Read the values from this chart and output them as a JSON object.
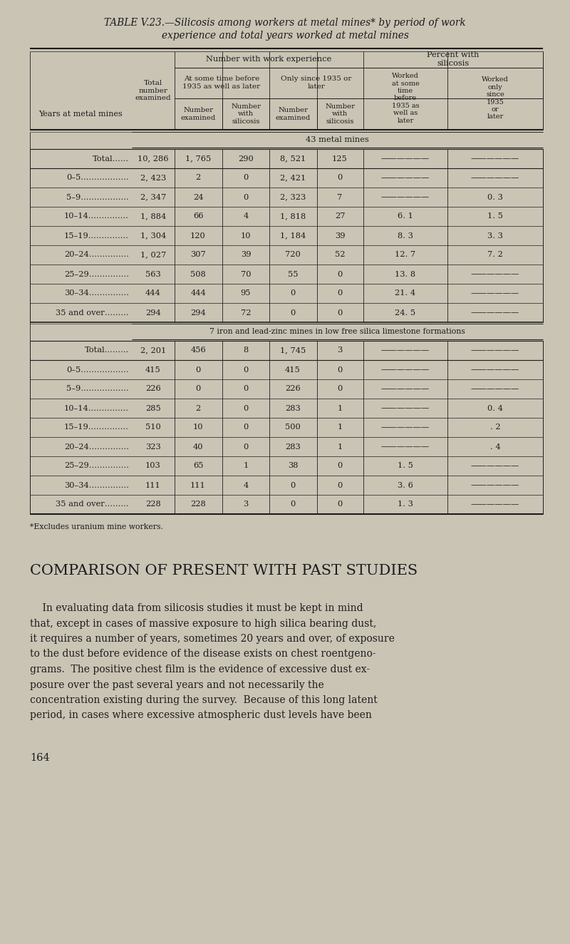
{
  "bg_color": "#cac4b5",
  "title_line1": "TABLE V.23.—Silicosis among workers at metal mines* by period of work",
  "title_line2": "experience and total years worked at metal mines",
  "section1_label": "43 metal mines",
  "section2_label": "7 iron and lead-zinc mines in low free silica limestone formations",
  "section1_total": [
    "Total……",
    "10, 286",
    "1, 765",
    "290",
    "8, 521",
    "125",
    "——————",
    "——————"
  ],
  "section1_rows": [
    [
      "0–5………………",
      "2, 423",
      "2",
      "0",
      "2, 421",
      "0",
      "——————",
      "——————"
    ],
    [
      "5–9………………",
      "2, 347",
      "24",
      "0",
      "2, 323",
      "7",
      "——————",
      "0. 3"
    ],
    [
      "10–14……………",
      "1, 884",
      "66",
      "4",
      "1, 818",
      "27",
      "6. 1",
      "1. 5"
    ],
    [
      "15–19……………",
      "1, 304",
      "120",
      "10",
      "1, 184",
      "39",
      "8. 3",
      "3. 3"
    ],
    [
      "20–24……………",
      "1, 027",
      "307",
      "39",
      "720",
      "52",
      "12. 7",
      "7. 2"
    ],
    [
      "25–29……………",
      "563",
      "508",
      "70",
      "55",
      "0",
      "13. 8",
      "——————"
    ],
    [
      "30–34……………",
      "444",
      "444",
      "95",
      "0",
      "0",
      "21. 4",
      "——————"
    ],
    [
      "35 and over………",
      "294",
      "294",
      "72",
      "0",
      "0",
      "24. 5",
      "——————"
    ]
  ],
  "section2_total": [
    "Total………",
    "2, 201",
    "456",
    "8",
    "1, 745",
    "3",
    "——————",
    "——————"
  ],
  "section2_rows": [
    [
      "0–5………………",
      "415",
      "0",
      "0",
      "415",
      "0",
      "——————",
      "——————"
    ],
    [
      "5–9………………",
      "226",
      "0",
      "0",
      "226",
      "0",
      "——————",
      "——————"
    ],
    [
      "10–14……………",
      "285",
      "2",
      "0",
      "283",
      "1",
      "——————",
      "0. 4"
    ],
    [
      "15–19……………",
      "510",
      "10",
      "0",
      "500",
      "1",
      "——————",
      ". 2"
    ],
    [
      "20–24……………",
      "323",
      "40",
      "0",
      "283",
      "1",
      "——————",
      ". 4"
    ],
    [
      "25–29……………",
      "103",
      "65",
      "1",
      "38",
      "0",
      "1. 5",
      "——————"
    ],
    [
      "30–34……………",
      "111",
      "111",
      "4",
      "0",
      "0",
      "3. 6",
      "——————"
    ],
    [
      "35 and over………",
      "228",
      "228",
      "3",
      "0",
      "0",
      "1. 3",
      "——————"
    ]
  ],
  "footnote": "*Excludes uranium mine workers.",
  "section_heading": "COMPARISON OF PRESENT WITH PAST STUDIES",
  "para_lines": [
    "    In evaluating data from silicosis studies it must be kept in mind",
    "that, except in cases of massive exposure to high silica bearing dust,",
    "it requires a number of years, sometimes 20 years and over, of exposure",
    "to the dust before evidence of the disease exists on chest roentgeno-",
    "grams.  The positive chest film is the evidence of excessive dust ex-",
    "posure over the past several years and not necessarily the",
    "concentration existing during the survey.  Because of this long latent",
    "period, in cases where excessive atmospheric dust levels have been"
  ],
  "page_number": "164"
}
